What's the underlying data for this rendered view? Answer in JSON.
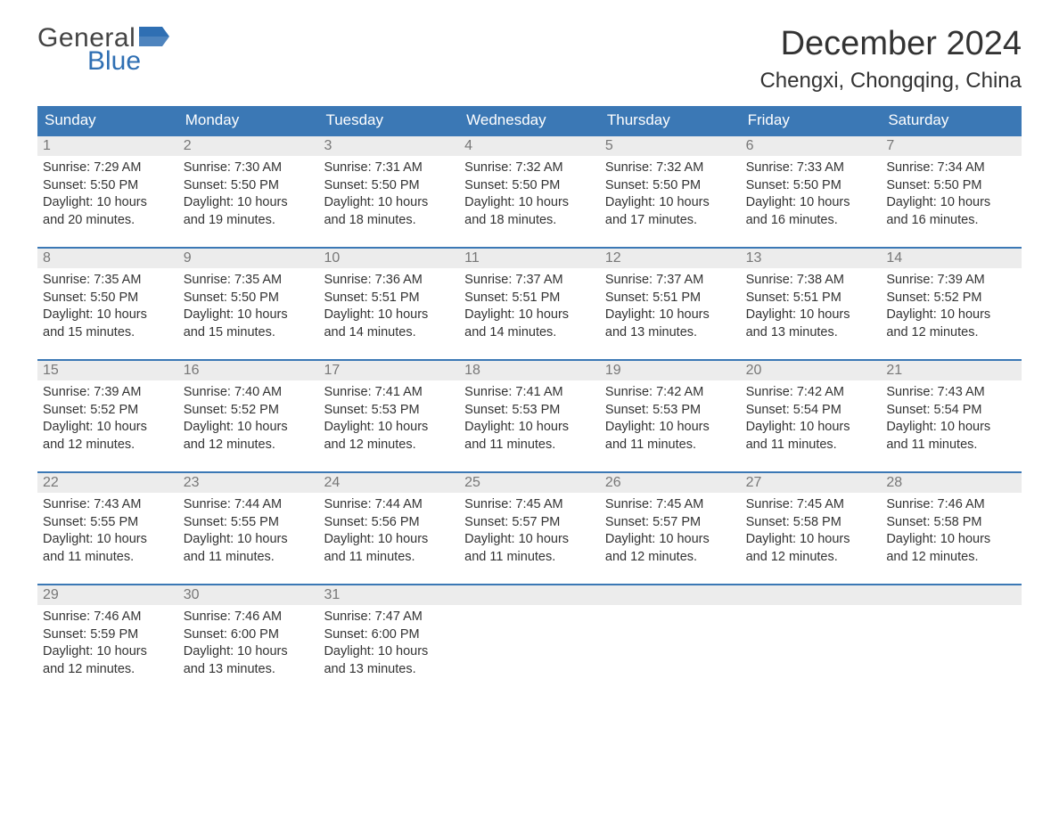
{
  "logo": {
    "text1": "General",
    "text2": "Blue",
    "flag_color": "#2f6fb3"
  },
  "title": "December 2024",
  "location": "Chengxi, Chongqing, China",
  "colors": {
    "header_bg": "#3b78b5",
    "band_bg": "#ececec",
    "row_border": "#3b78b5",
    "text": "#333333",
    "muted": "#777777"
  },
  "weekdays": [
    "Sunday",
    "Monday",
    "Tuesday",
    "Wednesday",
    "Thursday",
    "Friday",
    "Saturday"
  ],
  "labels": {
    "sunrise": "Sunrise:",
    "sunset": "Sunset:",
    "daylight": "Daylight:"
  },
  "weeks": [
    [
      {
        "d": "1",
        "sr": "7:29 AM",
        "ss": "5:50 PM",
        "dl": "10 hours and 20 minutes."
      },
      {
        "d": "2",
        "sr": "7:30 AM",
        "ss": "5:50 PM",
        "dl": "10 hours and 19 minutes."
      },
      {
        "d": "3",
        "sr": "7:31 AM",
        "ss": "5:50 PM",
        "dl": "10 hours and 18 minutes."
      },
      {
        "d": "4",
        "sr": "7:32 AM",
        "ss": "5:50 PM",
        "dl": "10 hours and 18 minutes."
      },
      {
        "d": "5",
        "sr": "7:32 AM",
        "ss": "5:50 PM",
        "dl": "10 hours and 17 minutes."
      },
      {
        "d": "6",
        "sr": "7:33 AM",
        "ss": "5:50 PM",
        "dl": "10 hours and 16 minutes."
      },
      {
        "d": "7",
        "sr": "7:34 AM",
        "ss": "5:50 PM",
        "dl": "10 hours and 16 minutes."
      }
    ],
    [
      {
        "d": "8",
        "sr": "7:35 AM",
        "ss": "5:50 PM",
        "dl": "10 hours and 15 minutes."
      },
      {
        "d": "9",
        "sr": "7:35 AM",
        "ss": "5:50 PM",
        "dl": "10 hours and 15 minutes."
      },
      {
        "d": "10",
        "sr": "7:36 AM",
        "ss": "5:51 PM",
        "dl": "10 hours and 14 minutes."
      },
      {
        "d": "11",
        "sr": "7:37 AM",
        "ss": "5:51 PM",
        "dl": "10 hours and 14 minutes."
      },
      {
        "d": "12",
        "sr": "7:37 AM",
        "ss": "5:51 PM",
        "dl": "10 hours and 13 minutes."
      },
      {
        "d": "13",
        "sr": "7:38 AM",
        "ss": "5:51 PM",
        "dl": "10 hours and 13 minutes."
      },
      {
        "d": "14",
        "sr": "7:39 AM",
        "ss": "5:52 PM",
        "dl": "10 hours and 12 minutes."
      }
    ],
    [
      {
        "d": "15",
        "sr": "7:39 AM",
        "ss": "5:52 PM",
        "dl": "10 hours and 12 minutes."
      },
      {
        "d": "16",
        "sr": "7:40 AM",
        "ss": "5:52 PM",
        "dl": "10 hours and 12 minutes."
      },
      {
        "d": "17",
        "sr": "7:41 AM",
        "ss": "5:53 PM",
        "dl": "10 hours and 12 minutes."
      },
      {
        "d": "18",
        "sr": "7:41 AM",
        "ss": "5:53 PM",
        "dl": "10 hours and 11 minutes."
      },
      {
        "d": "19",
        "sr": "7:42 AM",
        "ss": "5:53 PM",
        "dl": "10 hours and 11 minutes."
      },
      {
        "d": "20",
        "sr": "7:42 AM",
        "ss": "5:54 PM",
        "dl": "10 hours and 11 minutes."
      },
      {
        "d": "21",
        "sr": "7:43 AM",
        "ss": "5:54 PM",
        "dl": "10 hours and 11 minutes."
      }
    ],
    [
      {
        "d": "22",
        "sr": "7:43 AM",
        "ss": "5:55 PM",
        "dl": "10 hours and 11 minutes."
      },
      {
        "d": "23",
        "sr": "7:44 AM",
        "ss": "5:55 PM",
        "dl": "10 hours and 11 minutes."
      },
      {
        "d": "24",
        "sr": "7:44 AM",
        "ss": "5:56 PM",
        "dl": "10 hours and 11 minutes."
      },
      {
        "d": "25",
        "sr": "7:45 AM",
        "ss": "5:57 PM",
        "dl": "10 hours and 11 minutes."
      },
      {
        "d": "26",
        "sr": "7:45 AM",
        "ss": "5:57 PM",
        "dl": "10 hours and 12 minutes."
      },
      {
        "d": "27",
        "sr": "7:45 AM",
        "ss": "5:58 PM",
        "dl": "10 hours and 12 minutes."
      },
      {
        "d": "28",
        "sr": "7:46 AM",
        "ss": "5:58 PM",
        "dl": "10 hours and 12 minutes."
      }
    ],
    [
      {
        "d": "29",
        "sr": "7:46 AM",
        "ss": "5:59 PM",
        "dl": "10 hours and 12 minutes."
      },
      {
        "d": "30",
        "sr": "7:46 AM",
        "ss": "6:00 PM",
        "dl": "10 hours and 13 minutes."
      },
      {
        "d": "31",
        "sr": "7:47 AM",
        "ss": "6:00 PM",
        "dl": "10 hours and 13 minutes."
      },
      null,
      null,
      null,
      null
    ]
  ]
}
